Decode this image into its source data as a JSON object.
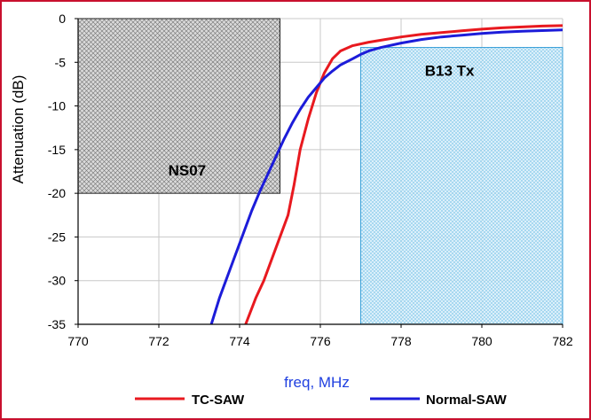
{
  "chart_data": {
    "type": "line",
    "title": "",
    "xlabel": "freq, MHz",
    "ylabel": "Attenuation (dB)",
    "xlim": [
      770,
      782
    ],
    "ylim": [
      -35,
      0
    ],
    "xticks": [
      770,
      772,
      774,
      776,
      778,
      780,
      782
    ],
    "yticks": [
      0,
      -5,
      -10,
      -15,
      -20,
      -25,
      -30,
      -35
    ],
    "xtick_labels": [
      "770",
      "772",
      "774",
      "776",
      "778",
      "780",
      "782"
    ],
    "ytick_labels": [
      "0",
      "-5",
      "-10",
      "-15",
      "-20",
      "-25",
      "-30",
      "-35"
    ],
    "grid": true,
    "legend_position": "bottom",
    "regions": [
      {
        "label": "NS07",
        "x": [
          770,
          775
        ],
        "y": [
          -20,
          0
        ],
        "color": "#444444",
        "pattern": "crosshatch"
      },
      {
        "label": "B13 Tx",
        "x": [
          777,
          782
        ],
        "y": [
          -35,
          -3.3
        ],
        "color": "#3aa0d8",
        "pattern": "dots"
      }
    ],
    "series": [
      {
        "name": "TC-SAW",
        "color": "#e8191f",
        "x": [
          774.15,
          774.4,
          774.6,
          774.8,
          775.0,
          775.2,
          775.35,
          775.5,
          775.7,
          775.9,
          776.1,
          776.3,
          776.5,
          776.8,
          777.2,
          777.6,
          778.0,
          778.5,
          779.0,
          779.5,
          780.0,
          780.5,
          781.0,
          781.5,
          782.0
        ],
        "y": [
          -35,
          -32,
          -30,
          -27.5,
          -25,
          -22.5,
          -19,
          -15,
          -11.5,
          -8.5,
          -6.2,
          -4.6,
          -3.7,
          -3.1,
          -2.7,
          -2.4,
          -2.1,
          -1.8,
          -1.6,
          -1.4,
          -1.2,
          -1.05,
          -0.95,
          -0.85,
          -0.8
        ]
      },
      {
        "name": "Normal-SAW",
        "color": "#1c1cd9",
        "x": [
          773.3,
          773.5,
          773.7,
          773.9,
          774.1,
          774.3,
          774.5,
          774.7,
          774.9,
          775.1,
          775.3,
          775.5,
          775.7,
          775.9,
          776.1,
          776.3,
          776.5,
          776.8,
          777.0,
          777.2,
          777.5,
          778.0,
          778.5,
          779.0,
          779.5,
          780.0,
          780.5,
          781.0,
          782.0
        ],
        "y": [
          -35,
          -32,
          -29.5,
          -27,
          -24.5,
          -22,
          -19.8,
          -17.8,
          -15.8,
          -13.8,
          -12,
          -10.4,
          -9,
          -7.9,
          -6.8,
          -6,
          -5.3,
          -4.6,
          -4.1,
          -3.7,
          -3.3,
          -2.8,
          -2.4,
          -2.1,
          -1.9,
          -1.7,
          -1.55,
          -1.45,
          -1.3
        ]
      }
    ]
  }
}
